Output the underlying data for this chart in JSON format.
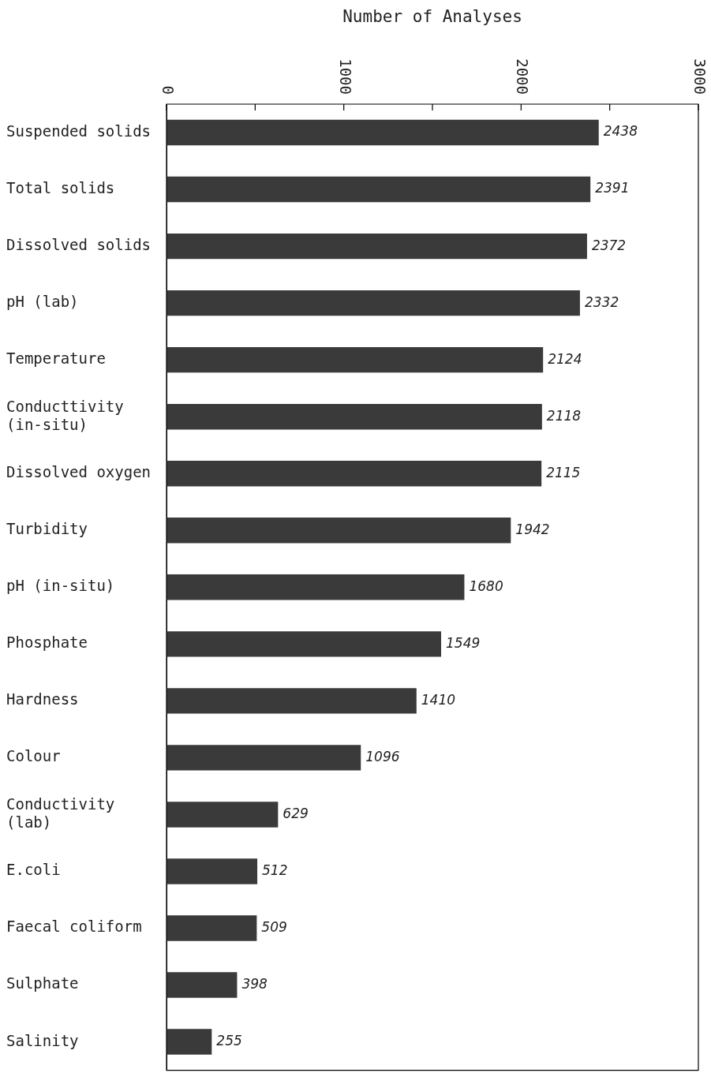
{
  "chart_data": {
    "type": "bar",
    "orientation": "horizontal",
    "xlabel": "Number of Analyses",
    "categories": [
      "Suspended solids",
      "Total solids",
      "Dissolved solids",
      "pH (lab)",
      "Temperature",
      "Conducttivity\n(in-situ)",
      "Dissolved oxygen",
      "Turbidity",
      "pH (in-situ)",
      "Phosphate",
      "Hardness",
      "Colour",
      "Conductivity\n(lab)",
      "E.coli",
      "Faecal coliform",
      "Sulphate",
      "Salinity"
    ],
    "values": [
      2438,
      2391,
      2372,
      2332,
      2124,
      2118,
      2115,
      1942,
      1680,
      1549,
      1410,
      1096,
      629,
      512,
      509,
      398,
      255
    ],
    "color": "#3a3a3a",
    "data_labels": true,
    "grid": false,
    "legend": false,
    "xlim": [
      0,
      3000
    ],
    "xticks": [
      0,
      {
        "value": 500,
        "label": null
      },
      1000,
      {
        "value": 1500,
        "label": null
      },
      2000,
      {
        "value": 2500,
        "label": null
      },
      3000
    ]
  }
}
